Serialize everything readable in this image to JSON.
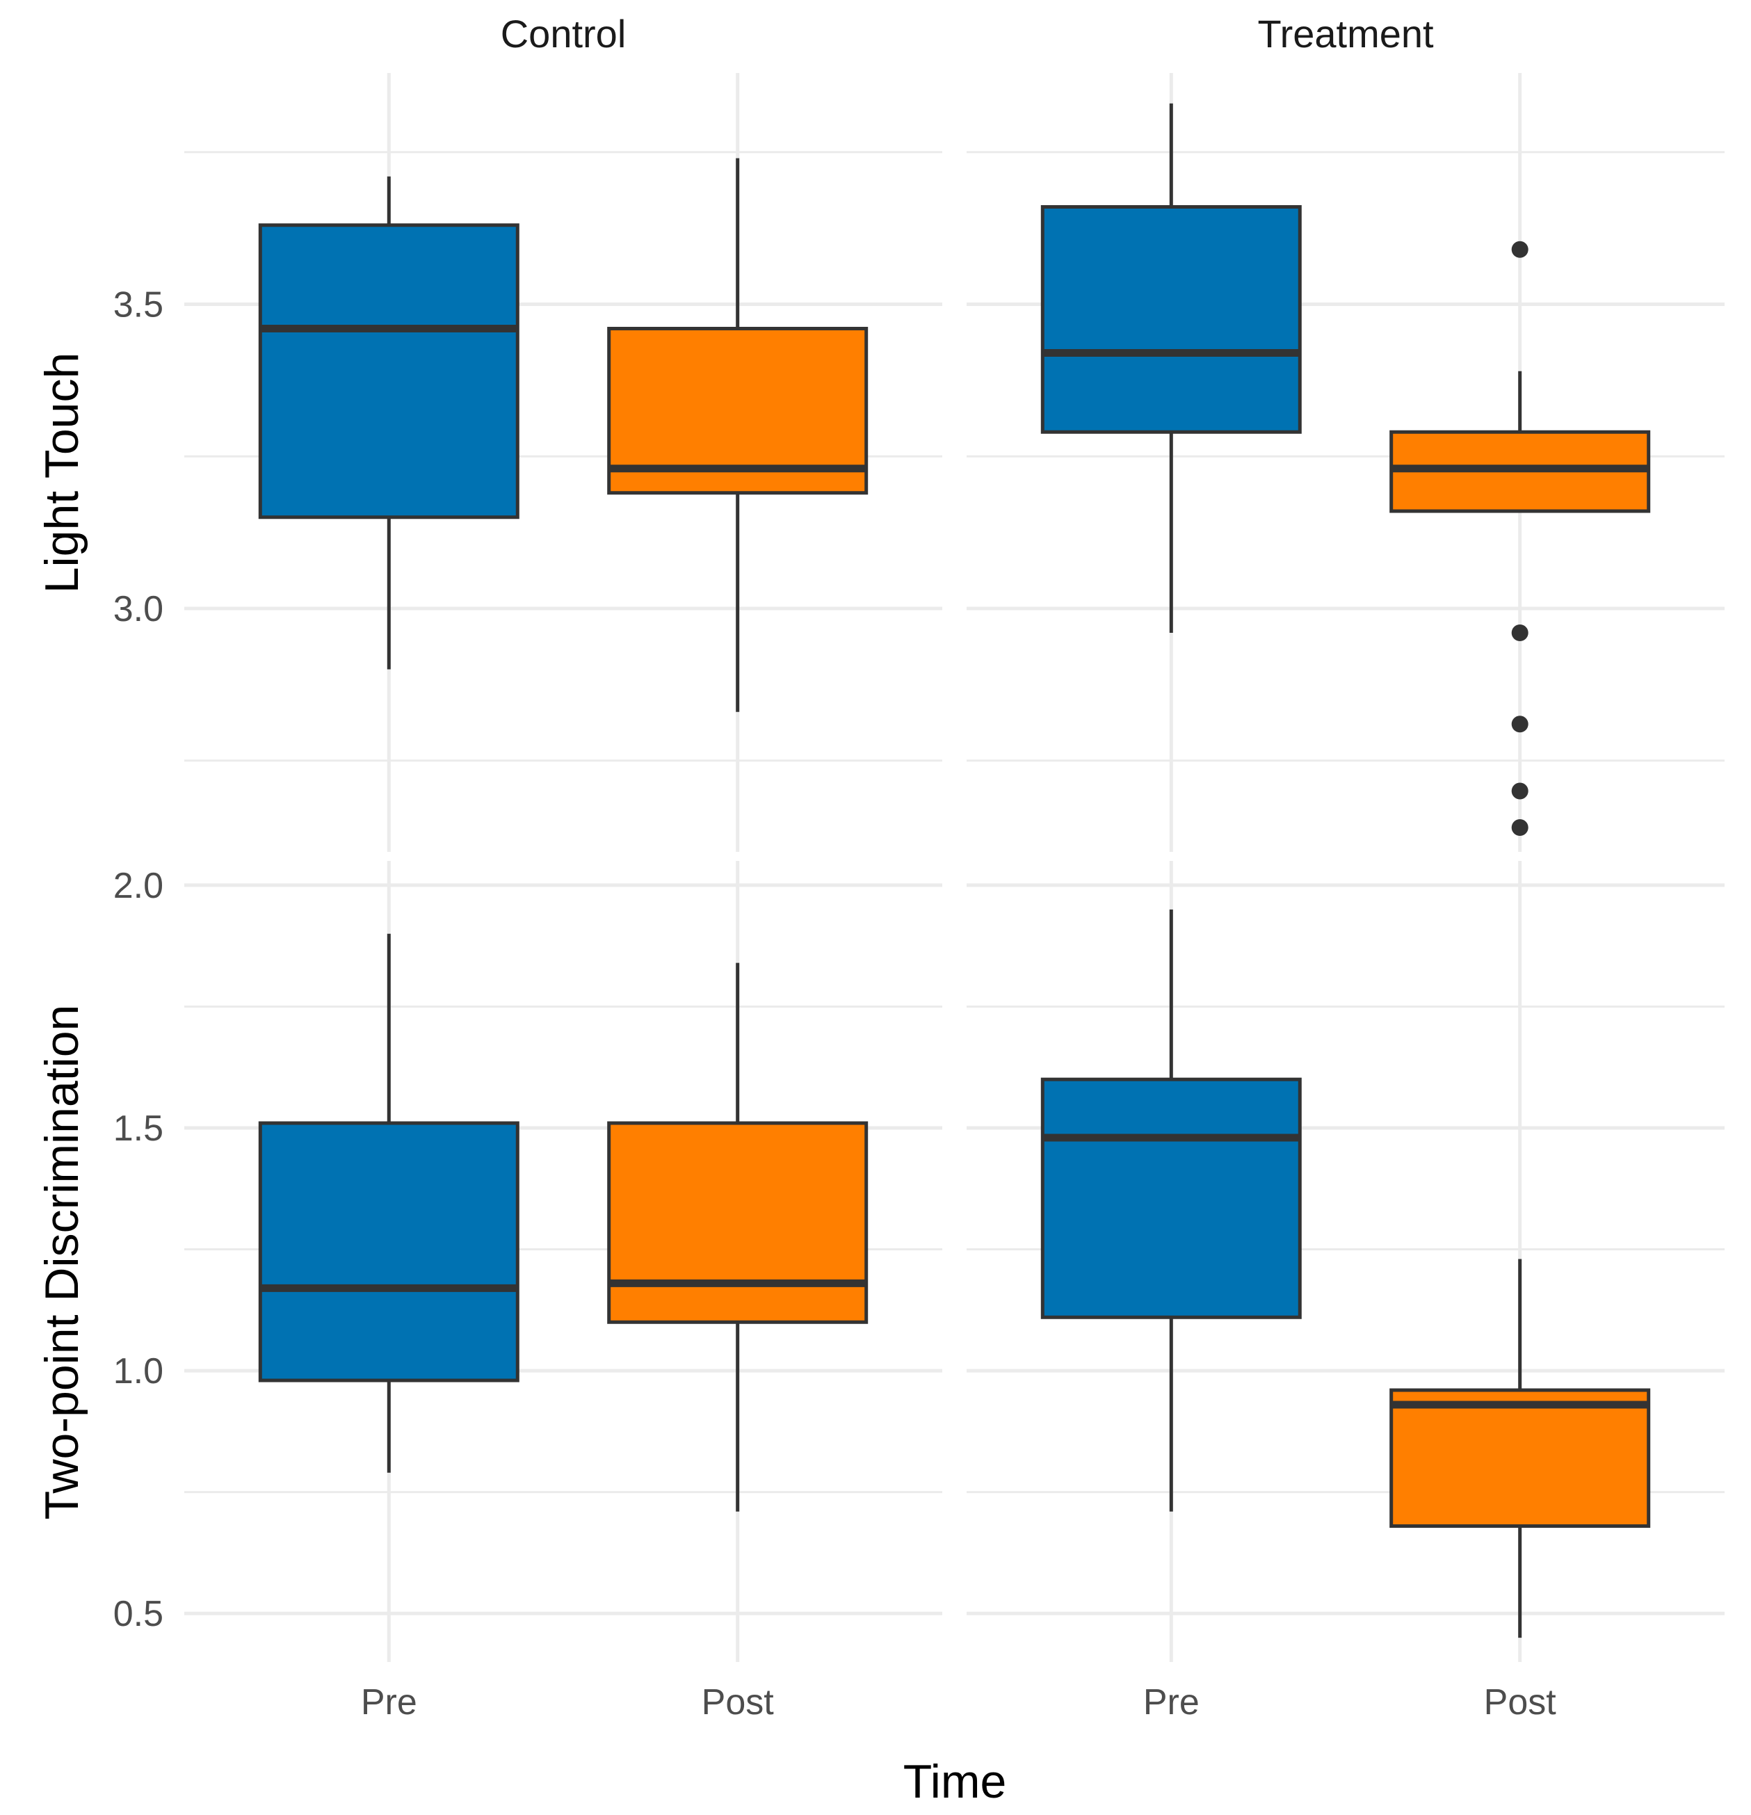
{
  "chart_data": {
    "type": "boxplot",
    "layout": "facet-grid",
    "column_facets": [
      "Control",
      "Treatment"
    ],
    "x_label": "Time",
    "x_categories": [
      "Pre",
      "Post"
    ],
    "colors": {
      "Pre": "#0072B2",
      "Post": "#FF7F00",
      "outline": "#333333",
      "grid": "#EBEBEB"
    },
    "rows": [
      {
        "name": "Light Touch",
        "ylabel": "Light Touch",
        "ylim": [
          2.6,
          3.88
        ],
        "ticks": [
          3.0,
          3.5
        ],
        "tick_labels": [
          "3.0",
          "3.5"
        ],
        "minor_ticks": [
          2.75,
          3.25,
          3.75
        ],
        "panels": [
          {
            "facet": "Control",
            "boxes": [
              {
                "category": "Pre",
                "whisker_low": 2.9,
                "q1": 3.15,
                "median": 3.46,
                "q3": 3.63,
                "whisker_high": 3.71,
                "outliers": []
              },
              {
                "category": "Post",
                "whisker_low": 2.83,
                "q1": 3.19,
                "median": 3.23,
                "q3": 3.46,
                "whisker_high": 3.74,
                "outliers": []
              }
            ]
          },
          {
            "facet": "Treatment",
            "boxes": [
              {
                "category": "Pre",
                "whisker_low": 2.96,
                "q1": 3.29,
                "median": 3.42,
                "q3": 3.66,
                "whisker_high": 3.83,
                "outliers": []
              },
              {
                "category": "Post",
                "whisker_low": 3.16,
                "q1": 3.16,
                "median": 3.23,
                "q3": 3.29,
                "whisker_high": 3.39,
                "outliers": [
                  3.59,
                  2.96,
                  2.81,
                  2.7,
                  2.64
                ]
              }
            ]
          }
        ]
      },
      {
        "name": "Two-point Discrimination",
        "ylabel": "Two-point Discrimination",
        "ylim": [
          0.4,
          2.05
        ],
        "ticks": [
          0.5,
          1.0,
          1.5,
          2.0
        ],
        "tick_labels": [
          "0.5",
          "1.0",
          "1.5",
          "2.0"
        ],
        "minor_ticks": [
          0.75,
          1.25,
          1.75
        ],
        "panels": [
          {
            "facet": "Control",
            "boxes": [
              {
                "category": "Pre",
                "whisker_low": 0.79,
                "q1": 0.98,
                "median": 1.17,
                "q3": 1.51,
                "whisker_high": 1.9,
                "outliers": []
              },
              {
                "category": "Post",
                "whisker_low": 0.71,
                "q1": 1.1,
                "median": 1.18,
                "q3": 1.51,
                "whisker_high": 1.84,
                "outliers": []
              }
            ]
          },
          {
            "facet": "Treatment",
            "boxes": [
              {
                "category": "Pre",
                "whisker_low": 0.71,
                "q1": 1.11,
                "median": 1.48,
                "q3": 1.6,
                "whisker_high": 1.95,
                "outliers": []
              },
              {
                "category": "Post",
                "whisker_low": 0.45,
                "q1": 0.68,
                "median": 0.93,
                "q3": 0.96,
                "whisker_high": 1.23,
                "outliers": []
              }
            ]
          }
        ]
      }
    ]
  }
}
